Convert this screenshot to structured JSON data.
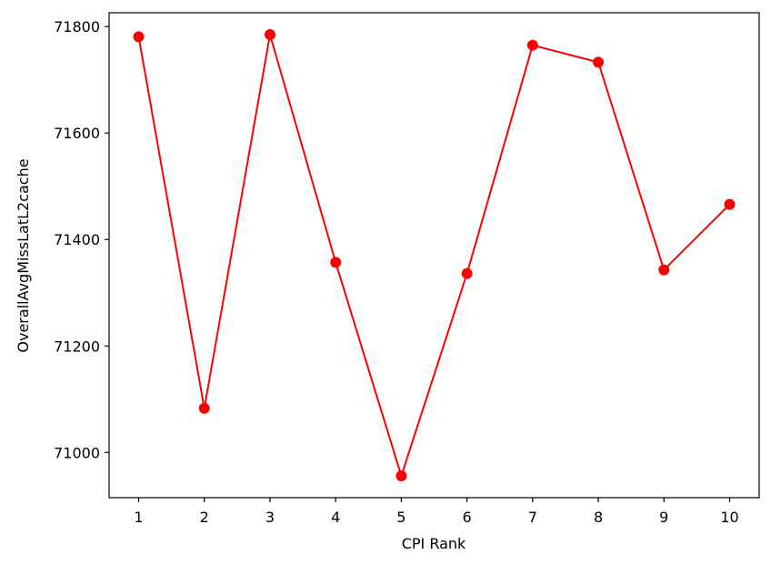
{
  "chart_data": {
    "type": "line",
    "title": "",
    "xlabel": "CPI Rank",
    "ylabel": "OverallAvgMissLatL2cache",
    "x": [
      1,
      2,
      3,
      4,
      5,
      6,
      7,
      8,
      9,
      10
    ],
    "series": [
      {
        "values": [
          71781,
          71083,
          71785,
          71357,
          70956,
          71336,
          71765,
          71733,
          71343,
          71466
        ],
        "color": "#ff0000",
        "marker": "circle"
      }
    ],
    "xlim": [
      0.55,
      10.45
    ],
    "ylim": [
      70915,
      71826
    ],
    "xticks": [
      "1",
      "2",
      "3",
      "4",
      "5",
      "6",
      "7",
      "8",
      "9",
      "10"
    ],
    "yticks": [
      71000,
      71200,
      71400,
      71600,
      71800
    ],
    "grid": false,
    "legend": "none"
  }
}
